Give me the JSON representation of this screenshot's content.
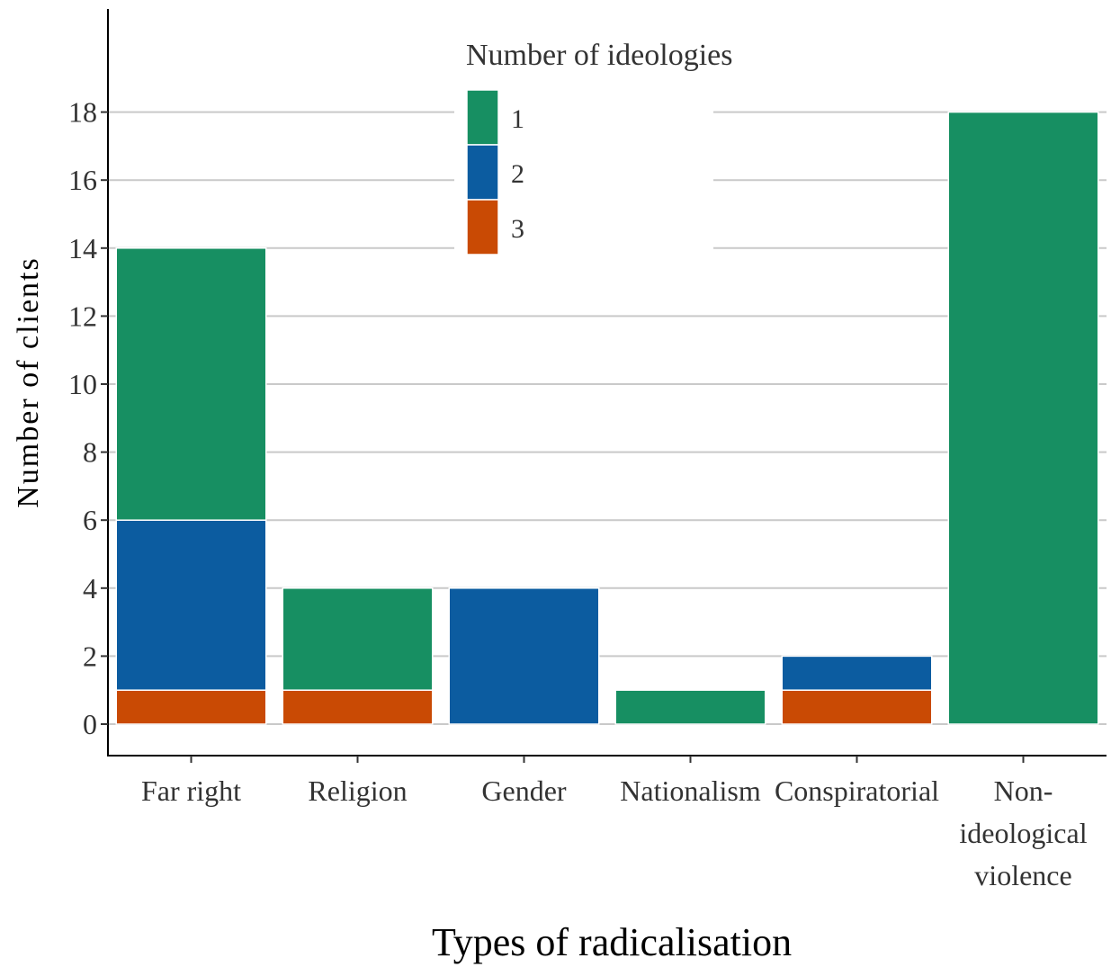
{
  "chart_data": {
    "type": "bar",
    "stacked": true,
    "title": "",
    "xlabel": "Types of radicalisation",
    "ylabel": "Number of clients",
    "ylim": [
      0,
      19
    ],
    "yticks": [
      0,
      2,
      4,
      6,
      8,
      10,
      12,
      14,
      16,
      18
    ],
    "grid": "horizontal major gridlines",
    "categories": [
      [
        "Far right"
      ],
      [
        "Religion"
      ],
      [
        "Gender"
      ],
      [
        "Nationalism"
      ],
      [
        "Conspiratorial"
      ],
      [
        "Non-",
        "ideological",
        "violence"
      ]
    ],
    "legend": {
      "title": "Number of ideologies",
      "placement": "top-center"
    },
    "series": [
      {
        "name": "3",
        "color": "#c94a04",
        "values": [
          1,
          1,
          0,
          0,
          1,
          0
        ]
      },
      {
        "name": "2",
        "color": "#0c5ca0",
        "values": [
          5,
          0,
          4,
          0,
          1,
          0
        ]
      },
      {
        "name": "1",
        "color": "#178f62",
        "values": [
          8,
          3,
          0,
          1,
          0,
          18
        ]
      }
    ]
  }
}
